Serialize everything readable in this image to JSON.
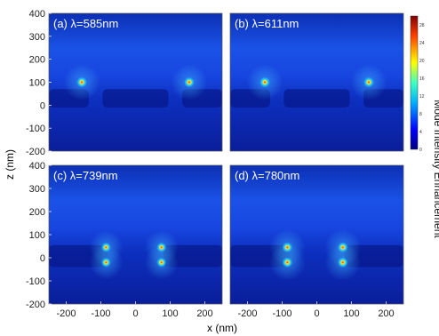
{
  "figure": {
    "xlabel": "x (nm)",
    "ylabel": "z (nm)",
    "colorbar_label": "Mode Intensity Enhancement"
  },
  "colors": {
    "background_field": "#0b2fc8",
    "upper_field": "#1a54ea",
    "lower_field": "#0a1f9c",
    "structure": "#05107a",
    "hotspot_low": "#11c8ff",
    "hotspot_mid": "#ffe42a",
    "hotspot_high": "#ff2200",
    "panel_label": "#ffffff"
  },
  "chart_data": [
    {
      "type": "heatmap",
      "title": "(a) λ=585nm",
      "xlim": [
        -250,
        250
      ],
      "ylim": [
        -200,
        400
      ],
      "xticks": [],
      "yticks": [
        -200,
        -100,
        0,
        100,
        200,
        300,
        400
      ],
      "colorbar": {
        "range": [
          0,
          30
        ],
        "ticks": [
          0,
          4,
          8,
          12,
          16,
          20,
          24,
          28
        ]
      },
      "hotspots": [
        {
          "x": -155,
          "z": 100,
          "intensity": 28
        },
        {
          "x": 155,
          "z": 100,
          "intensity": 28
        }
      ]
    },
    {
      "type": "heatmap",
      "title": "(b) λ=611nm",
      "xlim": [
        -250,
        250
      ],
      "ylim": [
        -200,
        400
      ],
      "xticks": [],
      "yticks": [],
      "colorbar": {
        "range": [
          0,
          30
        ],
        "ticks": [
          0,
          4,
          8,
          12,
          16,
          20,
          24,
          28
        ]
      },
      "hotspots": [
        {
          "x": -150,
          "z": 100,
          "intensity": 28
        },
        {
          "x": 150,
          "z": 100,
          "intensity": 28
        }
      ]
    },
    {
      "type": "heatmap",
      "title": "(c) λ=739nm",
      "xlim": [
        -250,
        250
      ],
      "ylim": [
        -200,
        400
      ],
      "xticks": [
        -200,
        -100,
        0,
        100,
        200
      ],
      "yticks": [
        -200,
        -100,
        0,
        100,
        200,
        300,
        400
      ],
      "colorbar": null,
      "hotspots": [
        {
          "x": -85,
          "z": 45,
          "intensity": 24
        },
        {
          "x": -85,
          "z": -20,
          "intensity": 24
        },
        {
          "x": 75,
          "z": 45,
          "intensity": 24
        },
        {
          "x": 75,
          "z": -20,
          "intensity": 24
        }
      ]
    },
    {
      "type": "heatmap",
      "title": "(d) λ=780nm",
      "xlim": [
        -250,
        250
      ],
      "ylim": [
        -200,
        400
      ],
      "xticks": [
        -200,
        -100,
        0,
        100,
        200
      ],
      "yticks": [],
      "colorbar": {
        "range": [
          0,
          30
        ],
        "ticks": [
          0,
          4,
          8,
          12,
          16,
          20,
          24,
          28
        ]
      },
      "hotspots": [
        {
          "x": -85,
          "z": 45,
          "intensity": 28
        },
        {
          "x": -85,
          "z": -20,
          "intensity": 28
        },
        {
          "x": 75,
          "z": 45,
          "intensity": 28
        },
        {
          "x": 75,
          "z": -20,
          "intensity": 28
        }
      ]
    }
  ]
}
